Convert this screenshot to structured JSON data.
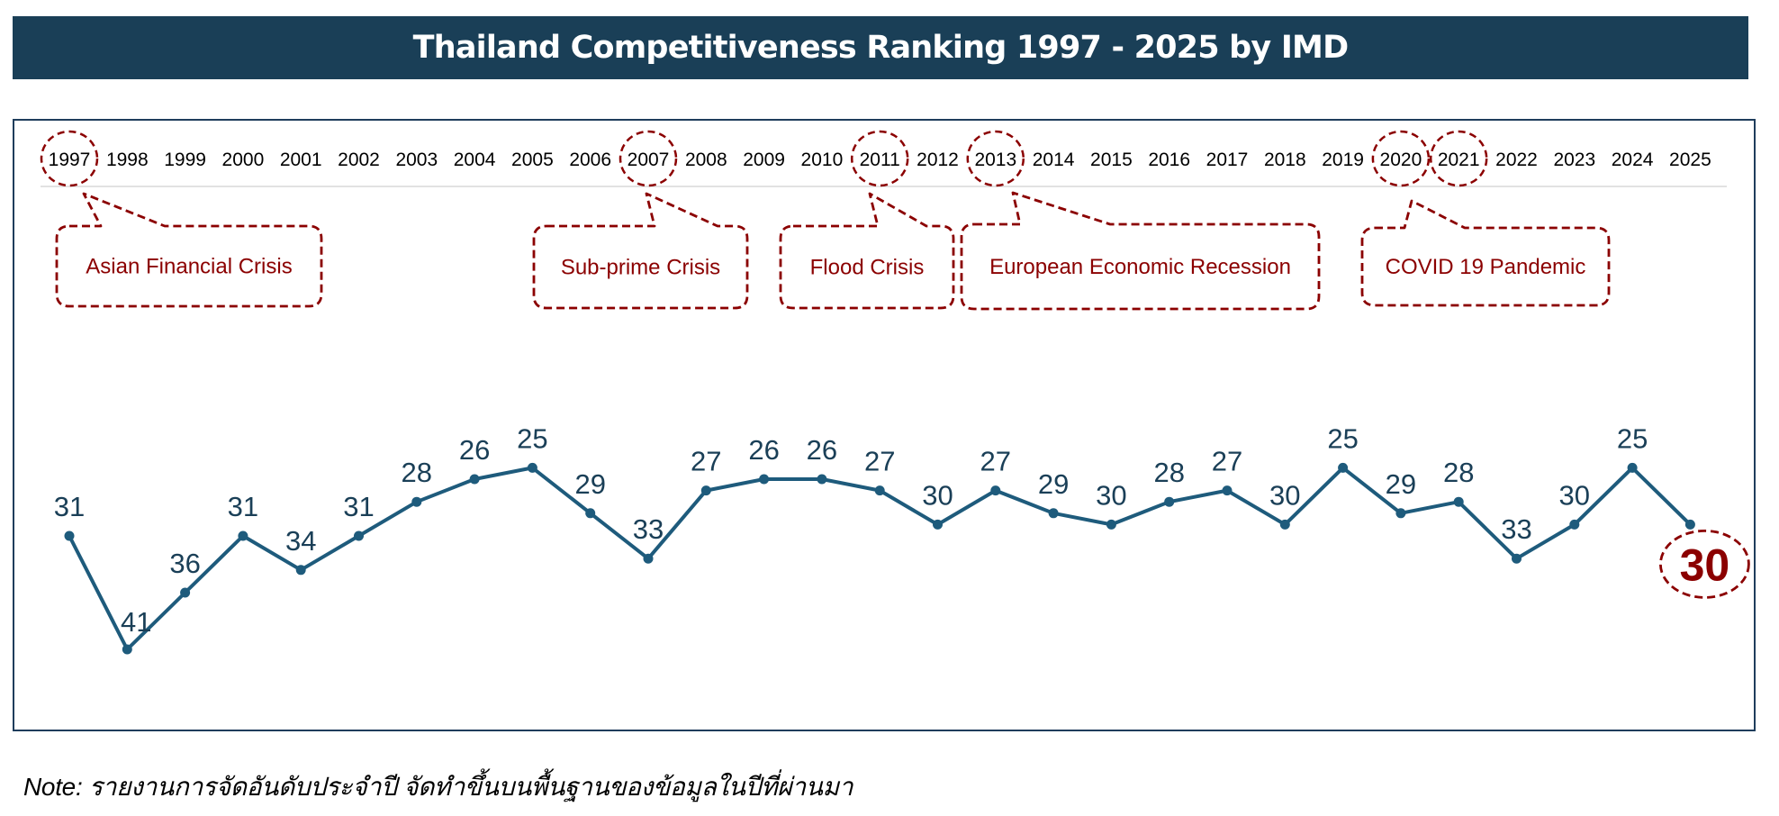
{
  "title": "Thailand Competitiveness Ranking 1997 - 2025 by IMD",
  "note": "Note: รายงานการจัดอันดับประจำปี จัดทำขึ้นบนพื้นฐานของข้อมูลในปีที่ผ่านมา",
  "colors": {
    "header": "#1a3f57",
    "line": "#1e5b7c",
    "label": "#1a3f57",
    "crisis": "#8b0000"
  },
  "chart_data": {
    "type": "line",
    "title": "Thailand Competitiveness Ranking 1997 - 2025 by IMD",
    "xlabel": "",
    "ylabel": "",
    "y_inverted": true,
    "grid": false,
    "x": [
      "1997",
      "1998",
      "1999",
      "2000",
      "2001",
      "2002",
      "2003",
      "2004",
      "2005",
      "2006",
      "2007",
      "2008",
      "2009",
      "2010",
      "2011",
      "2012",
      "2013",
      "2014",
      "2015",
      "2016",
      "2017",
      "2018",
      "2019",
      "2020",
      "2021",
      "2022",
      "2023",
      "2024",
      "2025"
    ],
    "series": [
      {
        "name": "IMD Ranking",
        "values": [
          31,
          41,
          36,
          31,
          34,
          31,
          28,
          26,
          25,
          29,
          33,
          27,
          26,
          26,
          27,
          30,
          27,
          29,
          30,
          28,
          27,
          30,
          25,
          29,
          28,
          33,
          30,
          25,
          30
        ]
      }
    ],
    "highlighted_years": [
      "1997",
      "2007",
      "2011",
      "2013",
      "2020",
      "2021"
    ],
    "latest_highlight": {
      "year": "2025",
      "value": "30"
    },
    "annotations": [
      {
        "year": "1997",
        "text": "Asian Financial Crisis"
      },
      {
        "year": "2007",
        "text": "Sub-prime Crisis"
      },
      {
        "year": "2011",
        "text": "Flood Crisis"
      },
      {
        "year": "2013",
        "text": "European Economic Recession"
      },
      {
        "year": "2020",
        "text": "COVID 19 Pandemic"
      }
    ]
  }
}
